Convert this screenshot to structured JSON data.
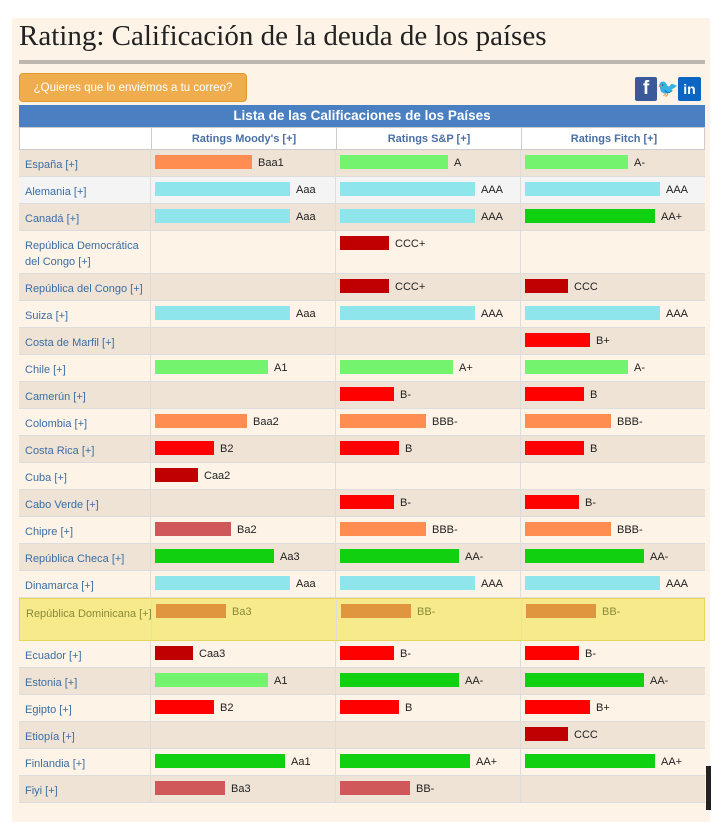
{
  "page": {
    "title": "Rating: Calificación de la deuda de los países",
    "email_button": "¿Quieres que lo enviémos a tu correo?",
    "social": [
      {
        "name": "facebook-icon",
        "glyph": "f"
      },
      {
        "name": "twitter-icon",
        "glyph": "🐦"
      },
      {
        "name": "linkedin-icon",
        "glyph": "in"
      }
    ]
  },
  "table": {
    "caption": "Lista de las Calificaciones de los Países",
    "columns": [
      "Ratings Moody's [+]",
      "Ratings S&P [+]",
      "Ratings Fitch [+]"
    ],
    "rows": [
      {
        "country": "España [+]",
        "moodys": "Baa1",
        "sp": "A",
        "fitch": "A-"
      },
      {
        "country": "Alemania [+]",
        "moodys": "Aaa",
        "sp": "AAA",
        "fitch": "AAA"
      },
      {
        "country": "Canadá [+]",
        "moodys": "Aaa",
        "sp": "AAA",
        "fitch": "AA+"
      },
      {
        "country": "República Democrática del Congo [+]",
        "moodys": "",
        "sp": "CCC+",
        "fitch": ""
      },
      {
        "country": "República del Congo [+]",
        "moodys": "",
        "sp": "CCC+",
        "fitch": "CCC"
      },
      {
        "country": "Suiza [+]",
        "moodys": "Aaa",
        "sp": "AAA",
        "fitch": "AAA"
      },
      {
        "country": "Costa de Marfil [+]",
        "moodys": "",
        "sp": "",
        "fitch": "B+"
      },
      {
        "country": "Chile [+]",
        "moodys": "A1",
        "sp": "A+",
        "fitch": "A-"
      },
      {
        "country": "Camerún [+]",
        "moodys": "",
        "sp": "B-",
        "fitch": "B"
      },
      {
        "country": "Colombia [+]",
        "moodys": "Baa2",
        "sp": "BBB-",
        "fitch": "BBB-"
      },
      {
        "country": "Costa Rica [+]",
        "moodys": "B2",
        "sp": "B",
        "fitch": "B"
      },
      {
        "country": "Cuba [+]",
        "moodys": "Caa2",
        "sp": "",
        "fitch": ""
      },
      {
        "country": "Cabo Verde [+]",
        "moodys": "",
        "sp": "B-",
        "fitch": "B-"
      },
      {
        "country": "Chipre [+]",
        "moodys": "Ba2",
        "sp": "BBB-",
        "fitch": "BBB-"
      },
      {
        "country": "República Checa [+]",
        "moodys": "Aa3",
        "sp": "AA-",
        "fitch": "AA-"
      },
      {
        "country": "Dinamarca [+]",
        "moodys": "Aaa",
        "sp": "AAA",
        "fitch": "AAA"
      },
      {
        "country": "República Dominicana [+]",
        "moodys": "Ba3",
        "sp": "BB-",
        "fitch": "BB-",
        "highlight": true
      },
      {
        "country": "Ecuador [+]",
        "moodys": "Caa3",
        "sp": "B-",
        "fitch": "B-"
      },
      {
        "country": "Estonia [+]",
        "moodys": "A1",
        "sp": "AA-",
        "fitch": "AA-"
      },
      {
        "country": "Egipto [+]",
        "moodys": "B2",
        "sp": "B",
        "fitch": "B+"
      },
      {
        "country": "Etiopía [+]",
        "moodys": "",
        "sp": "",
        "fitch": "CCC"
      },
      {
        "country": "Finlandia [+]",
        "moodys": "Aa1",
        "sp": "AA+",
        "fitch": "AA+"
      },
      {
        "country": "Fiyi [+]",
        "moodys": "Ba3",
        "sp": "BB-",
        "fitch": ""
      }
    ]
  },
  "rating_scale": {
    "Aaa": {
      "level": 1.0,
      "color": "#8ee6ec"
    },
    "AAA": {
      "level": 1.0,
      "color": "#8ee6ec"
    },
    "Aa1": {
      "level": 0.96,
      "color": "#10d010"
    },
    "AA+": {
      "level": 0.96,
      "color": "#10d010"
    },
    "Aa3": {
      "level": 0.88,
      "color": "#10d010"
    },
    "AA-": {
      "level": 0.88,
      "color": "#10d010"
    },
    "A1": {
      "level": 0.84,
      "color": "#74f36f"
    },
    "A+": {
      "level": 0.84,
      "color": "#74f36f"
    },
    "A": {
      "level": 0.8,
      "color": "#74f36f"
    },
    "A-": {
      "level": 0.76,
      "color": "#74f36f"
    },
    "Baa1": {
      "level": 0.72,
      "color": "#ff8c50"
    },
    "Baa2": {
      "level": 0.68,
      "color": "#ff8c50"
    },
    "BBB-": {
      "level": 0.64,
      "color": "#ff8c50"
    },
    "Ba2": {
      "level": 0.56,
      "color": "#d0575a"
    },
    "Ba3": {
      "level": 0.52,
      "color": "#d0575a"
    },
    "BB-": {
      "level": 0.52,
      "color": "#d0575a"
    },
    "B+": {
      "level": 0.48,
      "color": "#ff0000"
    },
    "B": {
      "level": 0.44,
      "color": "#ff0000"
    },
    "B2": {
      "level": 0.44,
      "color": "#ff0000"
    },
    "B-": {
      "level": 0.4,
      "color": "#ff0000"
    },
    "CCC+": {
      "level": 0.36,
      "color": "#c00000"
    },
    "CCC": {
      "level": 0.32,
      "color": "#c00000"
    },
    "Caa2": {
      "level": 0.32,
      "color": "#c00000"
    },
    "Caa3": {
      "level": 0.28,
      "color": "#c00000"
    }
  },
  "colors": {
    "header_blue": "#4a7fc1",
    "row_odd": "#efe3d5",
    "row_even": "#fdf3e6",
    "row_alt_white": "#f4f4f4",
    "highlight_row": "#f6ea8a",
    "highlight_bar": "#e0963e",
    "accent": "#f0ad4e"
  }
}
